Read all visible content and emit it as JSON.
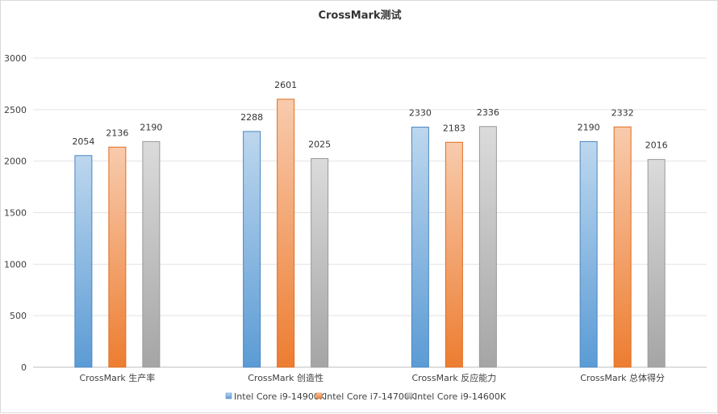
{
  "chart_data": {
    "type": "bar",
    "title": "CrossMark测试",
    "categories": [
      "CrossMark 生产率",
      "CrossMark 创造性",
      "CrossMark 反应能力",
      "CrossMark 总体得分"
    ],
    "series": [
      {
        "name": "Intel Core i9-14900K",
        "values": [
          2054,
          2288,
          2330,
          2190
        ],
        "color": "#5B9BD5",
        "color_light": "#BDD7EE",
        "stroke": "#4A86C0"
      },
      {
        "name": "Intel Core i7-14700K",
        "values": [
          2136,
          2601,
          2183,
          2332
        ],
        "color": "#ED7D31",
        "color_light": "#F8CBAD",
        "stroke": "#E06D20"
      },
      {
        "name": "Intel Core i9-14600K",
        "values": [
          2190,
          2025,
          2336,
          2016
        ],
        "color": "#A5A5A5",
        "color_light": "#DBDBDB",
        "stroke": "#999999"
      }
    ],
    "ylim": [
      0,
      3000
    ],
    "yticks": [
      0,
      500,
      1000,
      1500,
      2000,
      2500,
      3000
    ],
    "xlabel": "",
    "ylabel": "",
    "grid": true,
    "legend_position": "bottom"
  }
}
